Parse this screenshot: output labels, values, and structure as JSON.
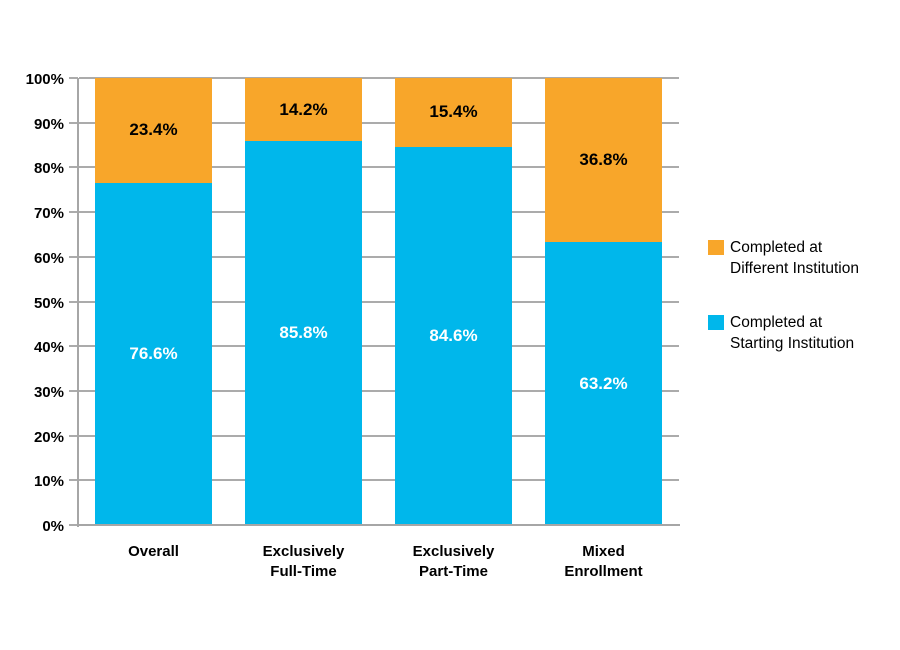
{
  "chart_data": {
    "type": "bar",
    "stacked": true,
    "orientation": "vertical",
    "title": "",
    "categories": [
      "Overall",
      "Exclusively\nFull-Time",
      "Exclusively\nPart-Time",
      "Mixed\nEnrollment"
    ],
    "series": [
      {
        "name": "Completed at\nStarting Institution",
        "values": [
          76.6,
          85.8,
          84.6,
          63.2
        ],
        "color": "#00B7EB",
        "label_color": "#FFFFFF"
      },
      {
        "name": "Completed at\nDifferent Institution",
        "values": [
          23.4,
          14.2,
          15.4,
          36.8
        ],
        "color": "#F8A62A",
        "label_color": "#000000"
      }
    ],
    "value_suffix": "%",
    "value_decimals": 1,
    "y_axis": {
      "min": 0,
      "max": 100,
      "tick_step": 10,
      "tick_labels": [
        "0%",
        "10%",
        "20%",
        "30%",
        "40%",
        "50%",
        "60%",
        "70%",
        "80%",
        "90%",
        "100%"
      ]
    },
    "grid": true,
    "axis_color": "#A6A6A6",
    "gridline_color": "#ABABAB",
    "legend": {
      "position": "right",
      "items": [
        {
          "label": "Completed at\nDifferent Institution",
          "color": "#F8A62A"
        },
        {
          "label": "Completed at\nStarting Institution",
          "color": "#00B7EB"
        }
      ]
    }
  }
}
